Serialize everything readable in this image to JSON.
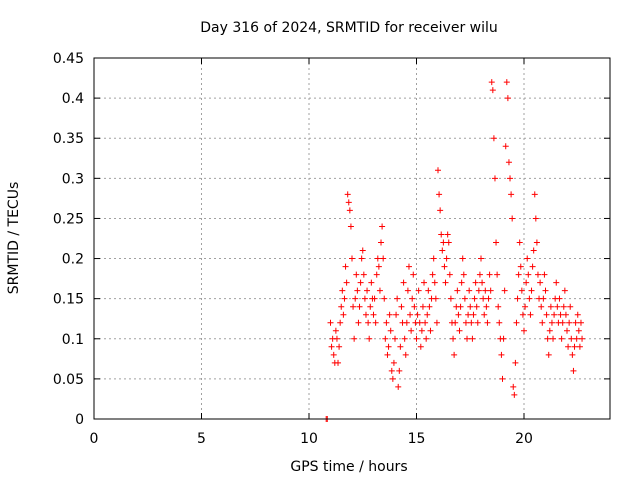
{
  "chart_data": {
    "type": "scatter",
    "title": "Day 316 of 2024, SRMTID for receiver wilu",
    "xlabel": "GPS time / hours",
    "ylabel": "SRMTID / TECUs",
    "xlim": [
      0,
      24
    ],
    "ylim": [
      0,
      0.45
    ],
    "xticks": [
      0,
      5,
      10,
      15,
      20
    ],
    "xtick_labels": [
      "0",
      "5",
      "10",
      "15",
      "20"
    ],
    "yticks": [
      0,
      0.05,
      0.1,
      0.15,
      0.2,
      0.25,
      0.3,
      0.35,
      0.4,
      0.45
    ],
    "ytick_labels": [
      "0",
      "0.05",
      "0.1",
      "0.15",
      "0.2",
      "0.25",
      "0.3",
      "0.35",
      "0.4",
      "0.45"
    ],
    "grid": true,
    "marker": "+",
    "color": "#ff0000",
    "series": [
      {
        "name": "SRMTID",
        "points": [
          [
            10.8,
            0.0
          ],
          [
            10.85,
            0.0
          ],
          [
            11.0,
            0.12
          ],
          [
            11.05,
            0.09
          ],
          [
            11.1,
            0.1
          ],
          [
            11.15,
            0.08
          ],
          [
            11.2,
            0.07
          ],
          [
            11.25,
            0.11
          ],
          [
            11.3,
            0.1
          ],
          [
            11.35,
            0.07
          ],
          [
            11.4,
            0.09
          ],
          [
            11.45,
            0.12
          ],
          [
            11.5,
            0.14
          ],
          [
            11.55,
            0.16
          ],
          [
            11.6,
            0.13
          ],
          [
            11.65,
            0.15
          ],
          [
            11.7,
            0.19
          ],
          [
            11.75,
            0.17
          ],
          [
            11.8,
            0.28
          ],
          [
            11.85,
            0.27
          ],
          [
            11.9,
            0.26
          ],
          [
            11.95,
            0.24
          ],
          [
            12.0,
            0.2
          ],
          [
            12.05,
            0.14
          ],
          [
            12.1,
            0.1
          ],
          [
            12.15,
            0.15
          ],
          [
            12.2,
            0.18
          ],
          [
            12.25,
            0.16
          ],
          [
            12.3,
            0.12
          ],
          [
            12.35,
            0.14
          ],
          [
            12.4,
            0.17
          ],
          [
            12.45,
            0.2
          ],
          [
            12.5,
            0.21
          ],
          [
            12.55,
            0.18
          ],
          [
            12.6,
            0.15
          ],
          [
            12.65,
            0.13
          ],
          [
            12.7,
            0.16
          ],
          [
            12.75,
            0.12
          ],
          [
            12.8,
            0.1
          ],
          [
            12.85,
            0.14
          ],
          [
            12.9,
            0.17
          ],
          [
            12.95,
            0.15
          ],
          [
            13.0,
            0.13
          ],
          [
            13.05,
            0.15
          ],
          [
            13.1,
            0.12
          ],
          [
            13.15,
            0.18
          ],
          [
            13.2,
            0.2
          ],
          [
            13.25,
            0.19
          ],
          [
            13.3,
            0.16
          ],
          [
            13.35,
            0.22
          ],
          [
            13.4,
            0.24
          ],
          [
            13.45,
            0.2
          ],
          [
            13.5,
            0.15
          ],
          [
            13.55,
            0.1
          ],
          [
            13.6,
            0.12
          ],
          [
            13.65,
            0.08
          ],
          [
            13.7,
            0.09
          ],
          [
            13.75,
            0.13
          ],
          [
            13.8,
            0.11
          ],
          [
            13.85,
            0.06
          ],
          [
            13.9,
            0.05
          ],
          [
            13.95,
            0.07
          ],
          [
            14.0,
            0.1
          ],
          [
            14.05,
            0.13
          ],
          [
            14.1,
            0.15
          ],
          [
            14.15,
            0.04
          ],
          [
            14.2,
            0.06
          ],
          [
            14.25,
            0.09
          ],
          [
            14.3,
            0.14
          ],
          [
            14.35,
            0.12
          ],
          [
            14.4,
            0.17
          ],
          [
            14.45,
            0.1
          ],
          [
            14.5,
            0.08
          ],
          [
            14.55,
            0.12
          ],
          [
            14.6,
            0.16
          ],
          [
            14.65,
            0.19
          ],
          [
            14.7,
            0.13
          ],
          [
            14.75,
            0.11
          ],
          [
            14.8,
            0.15
          ],
          [
            14.85,
            0.18
          ],
          [
            14.9,
            0.14
          ],
          [
            14.95,
            0.12
          ],
          [
            15.0,
            0.1
          ],
          [
            15.05,
            0.13
          ],
          [
            15.1,
            0.16
          ],
          [
            15.15,
            0.12
          ],
          [
            15.2,
            0.09
          ],
          [
            15.25,
            0.11
          ],
          [
            15.3,
            0.14
          ],
          [
            15.35,
            0.17
          ],
          [
            15.4,
            0.12
          ],
          [
            15.45,
            0.1
          ],
          [
            15.5,
            0.13
          ],
          [
            15.55,
            0.16
          ],
          [
            15.6,
            0.14
          ],
          [
            15.65,
            0.11
          ],
          [
            15.7,
            0.15
          ],
          [
            15.75,
            0.18
          ],
          [
            15.8,
            0.2
          ],
          [
            15.85,
            0.17
          ],
          [
            15.9,
            0.15
          ],
          [
            15.95,
            0.12
          ],
          [
            16.0,
            0.31
          ],
          [
            16.05,
            0.28
          ],
          [
            16.1,
            0.26
          ],
          [
            16.15,
            0.23
          ],
          [
            16.2,
            0.21
          ],
          [
            16.25,
            0.22
          ],
          [
            16.3,
            0.19
          ],
          [
            16.35,
            0.17
          ],
          [
            16.4,
            0.2
          ],
          [
            16.45,
            0.23
          ],
          [
            16.5,
            0.22
          ],
          [
            16.55,
            0.18
          ],
          [
            16.6,
            0.15
          ],
          [
            16.65,
            0.12
          ],
          [
            16.7,
            0.1
          ],
          [
            16.75,
            0.08
          ],
          [
            16.8,
            0.12
          ],
          [
            16.85,
            0.14
          ],
          [
            16.9,
            0.16
          ],
          [
            16.95,
            0.13
          ],
          [
            17.0,
            0.11
          ],
          [
            17.05,
            0.14
          ],
          [
            17.1,
            0.17
          ],
          [
            17.15,
            0.2
          ],
          [
            17.2,
            0.18
          ],
          [
            17.25,
            0.15
          ],
          [
            17.3,
            0.12
          ],
          [
            17.35,
            0.1
          ],
          [
            17.4,
            0.13
          ],
          [
            17.45,
            0.16
          ],
          [
            17.5,
            0.14
          ],
          [
            17.55,
            0.12
          ],
          [
            17.6,
            0.1
          ],
          [
            17.65,
            0.13
          ],
          [
            17.7,
            0.15
          ],
          [
            17.75,
            0.17
          ],
          [
            17.8,
            0.14
          ],
          [
            17.85,
            0.12
          ],
          [
            17.9,
            0.16
          ],
          [
            17.95,
            0.18
          ],
          [
            18.0,
            0.2
          ],
          [
            18.05,
            0.17
          ],
          [
            18.1,
            0.15
          ],
          [
            18.15,
            0.13
          ],
          [
            18.2,
            0.16
          ],
          [
            18.25,
            0.14
          ],
          [
            18.3,
            0.12
          ],
          [
            18.35,
            0.15
          ],
          [
            18.4,
            0.18
          ],
          [
            18.45,
            0.16
          ],
          [
            18.5,
            0.42
          ],
          [
            18.55,
            0.41
          ],
          [
            18.6,
            0.35
          ],
          [
            18.65,
            0.3
          ],
          [
            18.7,
            0.22
          ],
          [
            18.75,
            0.18
          ],
          [
            18.8,
            0.14
          ],
          [
            18.85,
            0.12
          ],
          [
            18.9,
            0.1
          ],
          [
            18.95,
            0.08
          ],
          [
            19.0,
            0.05
          ],
          [
            19.05,
            0.1
          ],
          [
            19.1,
            0.16
          ],
          [
            19.15,
            0.34
          ],
          [
            19.2,
            0.42
          ],
          [
            19.25,
            0.4
          ],
          [
            19.3,
            0.32
          ],
          [
            19.35,
            0.3
          ],
          [
            19.4,
            0.28
          ],
          [
            19.45,
            0.25
          ],
          [
            19.5,
            0.04
          ],
          [
            19.55,
            0.03
          ],
          [
            19.6,
            0.07
          ],
          [
            19.65,
            0.12
          ],
          [
            19.7,
            0.15
          ],
          [
            19.75,
            0.18
          ],
          [
            19.8,
            0.22
          ],
          [
            19.85,
            0.19
          ],
          [
            19.9,
            0.16
          ],
          [
            19.95,
            0.13
          ],
          [
            20.0,
            0.11
          ],
          [
            20.05,
            0.14
          ],
          [
            20.1,
            0.17
          ],
          [
            20.15,
            0.2
          ],
          [
            20.2,
            0.18
          ],
          [
            20.25,
            0.15
          ],
          [
            20.3,
            0.13
          ],
          [
            20.35,
            0.16
          ],
          [
            20.4,
            0.19
          ],
          [
            20.45,
            0.21
          ],
          [
            20.5,
            0.28
          ],
          [
            20.55,
            0.25
          ],
          [
            20.6,
            0.22
          ],
          [
            20.65,
            0.18
          ],
          [
            20.7,
            0.15
          ],
          [
            20.75,
            0.17
          ],
          [
            20.8,
            0.14
          ],
          [
            20.85,
            0.12
          ],
          [
            20.9,
            0.15
          ],
          [
            20.95,
            0.18
          ],
          [
            21.0,
            0.16
          ],
          [
            21.05,
            0.13
          ],
          [
            21.1,
            0.1
          ],
          [
            21.15,
            0.08
          ],
          [
            21.2,
            0.11
          ],
          [
            21.25,
            0.14
          ],
          [
            21.3,
            0.12
          ],
          [
            21.35,
            0.1
          ],
          [
            21.4,
            0.13
          ],
          [
            21.45,
            0.15
          ],
          [
            21.5,
            0.17
          ],
          [
            21.55,
            0.14
          ],
          [
            21.6,
            0.12
          ],
          [
            21.65,
            0.15
          ],
          [
            21.7,
            0.13
          ],
          [
            21.75,
            0.1
          ],
          [
            21.8,
            0.12
          ],
          [
            21.85,
            0.14
          ],
          [
            21.9,
            0.16
          ],
          [
            21.95,
            0.13
          ],
          [
            22.0,
            0.11
          ],
          [
            22.05,
            0.09
          ],
          [
            22.1,
            0.12
          ],
          [
            22.15,
            0.14
          ],
          [
            22.2,
            0.1
          ],
          [
            22.25,
            0.08
          ],
          [
            22.3,
            0.06
          ],
          [
            22.35,
            0.09
          ],
          [
            22.4,
            0.12
          ],
          [
            22.45,
            0.1
          ],
          [
            22.5,
            0.13
          ],
          [
            22.55,
            0.11
          ],
          [
            22.6,
            0.09
          ],
          [
            22.65,
            0.12
          ],
          [
            22.7,
            0.1
          ]
        ]
      }
    ]
  }
}
